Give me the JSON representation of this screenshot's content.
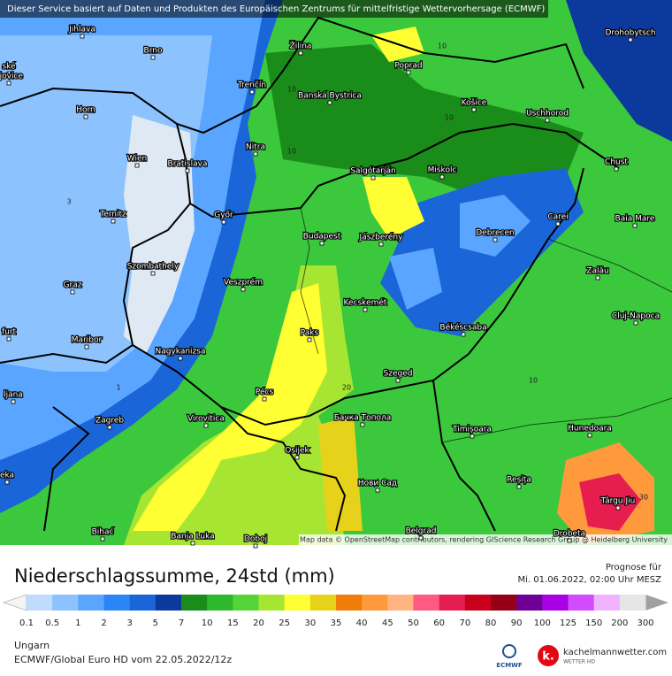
{
  "header": {
    "banner": "Dieser Service basiert auf Daten und Produkten des Europäischen Zentrums für mittelfristige Wettervorhersage (ECMWF)",
    "attribution": "Map data © OpenStreetMap contributors, rendering GIScience Research Group @ Heidelberg University"
  },
  "map": {
    "cities": [
      "Jihlava",
      "Brno",
      "ské",
      "ějovice",
      "Horn",
      "Wien",
      "Bratislava",
      "Ternitz",
      "Győr",
      "Graz",
      "Szombathely",
      "Veszprém",
      "Maribor",
      "Nagykanizsa",
      "ljana",
      "Zagreb",
      "Virovitica",
      "Pécs",
      "Osijek",
      "Bihać",
      "Banja Luka",
      "Doboj",
      "Žilina",
      "Poprad",
      "Trenčín",
      "Banská Bystrica",
      "Košice",
      "Uschhorod",
      "Drohobytsch",
      "Nitra",
      "Salgótarján",
      "Miskolc",
      "Chust",
      "Budapest",
      "Jászberény",
      "Debrecen",
      "Carei",
      "Baia Mare",
      "Zalău",
      "Cluj-Napoca",
      "Kecskemét",
      "Paks",
      "Békéscsaba",
      "Szeged",
      "Бачка Топола",
      "Timișoara",
      "Hunedoara",
      "Нови Сад",
      "Reșița",
      "Târgu Jiu",
      "Belgrad",
      "Drobeta",
      "eka",
      "furt"
    ],
    "contour_labels": [
      "10",
      "10",
      "10",
      "10",
      "10",
      "3",
      "1",
      "20",
      "30"
    ]
  },
  "legend": {
    "title": "Niederschlagssumme, 24std (mm)",
    "forecast_label": "Prognose für",
    "forecast_time": "Mi. 01.06.2022, 02:00 Uhr MESZ",
    "labels": [
      "0.1",
      "0.5",
      "1",
      "2",
      "3",
      "5",
      "7",
      "10",
      "15",
      "20",
      "25",
      "30",
      "35",
      "40",
      "45",
      "50",
      "60",
      "70",
      "80",
      "90",
      "100",
      "125",
      "150",
      "200",
      "300"
    ],
    "colors": [
      "#bfdcff",
      "#8cc3ff",
      "#5aa5ff",
      "#2b86f5",
      "#1a66d9",
      "#0c3a9c",
      "#1a8c1a",
      "#2db82d",
      "#55d43a",
      "#a6e632",
      "#ffff33",
      "#e6d21a",
      "#f07d0a",
      "#ff9a3c",
      "#ffb482",
      "#ff5a82",
      "#e61e50",
      "#c8001e",
      "#960014",
      "#6e0096",
      "#aa00e6",
      "#d24bff",
      "#f0b4ff",
      "#e6e6e6"
    ]
  },
  "footer": {
    "region": "Ungarn",
    "model": "ECMWF/Global Euro HD vom  22.05.2022/12z",
    "ecmwf_logo": "ECMWF",
    "site": "kachelmannwetter.com",
    "site_sub": "WETTER HD"
  }
}
